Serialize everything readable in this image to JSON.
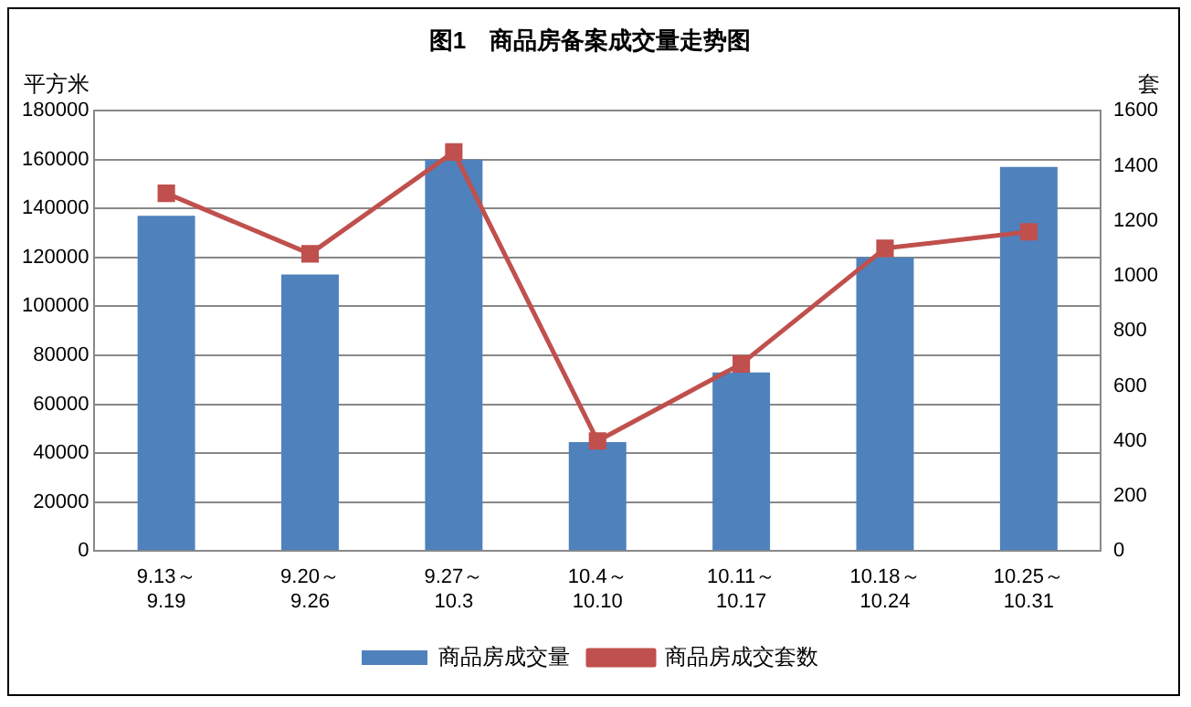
{
  "chart_data": {
    "type": "bar",
    "title": "图1　商品房备案成交量走势图",
    "ylabel": "平方米",
    "y2label": "套",
    "categories": [
      "9.13～\n9.19",
      "9.20～\n9.26",
      "9.27～\n10.3",
      "10.4～\n10.10",
      "10.11～\n10.17",
      "10.18～\n10.24",
      "10.25～\n10.31"
    ],
    "series": [
      {
        "name": "商品房成交量",
        "color": "#4f81bd",
        "values": [
          137000,
          113000,
          160000,
          44500,
          73000,
          120000,
          157000
        ]
      },
      {
        "name": "商品房成交套数",
        "type": "line",
        "axis": "y2",
        "color": "#c0504d",
        "values": [
          1300,
          1080,
          1450,
          400,
          680,
          1100,
          1160
        ]
      }
    ],
    "ylim": [
      0,
      180000
    ],
    "yticks": [
      0,
      20000,
      40000,
      60000,
      80000,
      100000,
      120000,
      140000,
      160000,
      180000
    ],
    "y2lim": [
      0,
      1600
    ],
    "y2ticks": [
      0,
      200,
      400,
      600,
      800,
      1000,
      1200,
      1400,
      1600
    ],
    "grid": "y",
    "legend": "bottom",
    "marker": "square",
    "line_style": "solid"
  }
}
